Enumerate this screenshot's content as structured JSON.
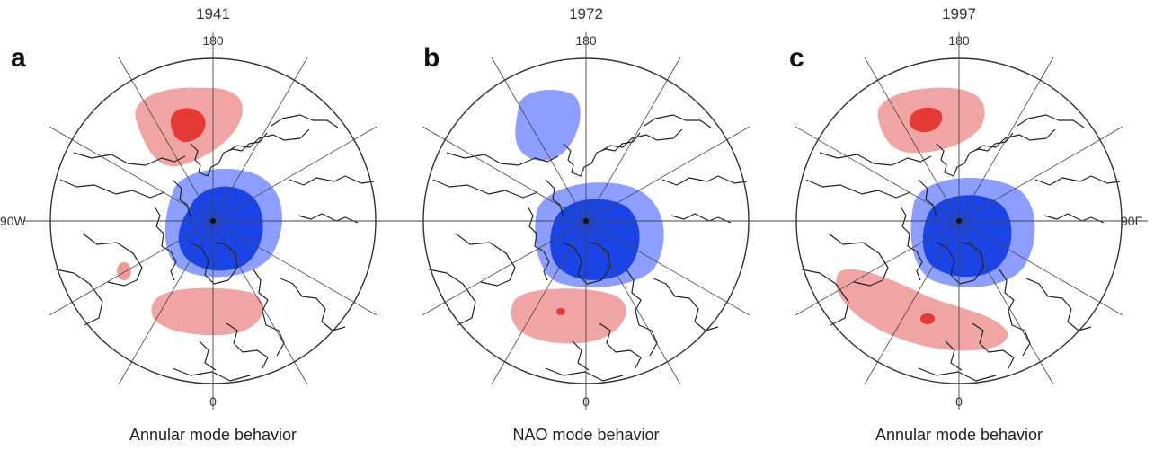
{
  "panels": [
    {
      "letter": "a",
      "year": "1941",
      "top_label": "180",
      "bottom_label": "0",
      "left_label": "90W",
      "right_label": "",
      "caption": "Annular mode behavior"
    },
    {
      "letter": "b",
      "year": "1972",
      "top_label": "180",
      "bottom_label": "0",
      "left_label": "",
      "right_label": "",
      "caption": "NAO mode behavior"
    },
    {
      "letter": "c",
      "year": "1997",
      "top_label": "180",
      "bottom_label": "0",
      "left_label": "",
      "right_label": "90E",
      "caption": "Annular mode behavior"
    }
  ],
  "colors": {
    "positive_light": "#ef9a9a",
    "positive_strong": "#e53935",
    "negative_light": "#8c9eff",
    "negative_strong": "#1a44e6",
    "negative_core": "#0a2fc8"
  }
}
